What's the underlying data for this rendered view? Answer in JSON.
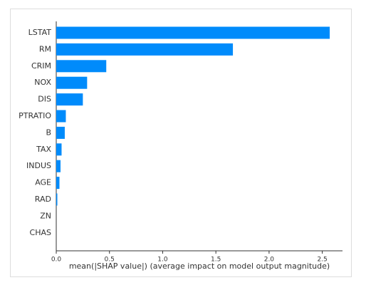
{
  "chart_data": {
    "type": "barh",
    "categories": [
      "LSTAT",
      "RM",
      "CRIM",
      "NOX",
      "DIS",
      "PTRATIO",
      "B",
      "TAX",
      "INDUS",
      "AGE",
      "RAD",
      "ZN",
      "CHAS"
    ],
    "values": [
      2.57,
      1.66,
      0.47,
      0.29,
      0.25,
      0.09,
      0.08,
      0.05,
      0.04,
      0.03,
      0.01,
      0.0,
      0.0
    ],
    "color": "#008bfb",
    "xlabel": "mean(|SHAP value|) (average impact on model output magnitude)",
    "xlim": [
      0,
      2.69
    ],
    "xticks": [
      {
        "value": 0,
        "label": "0.0"
      },
      {
        "value": 0.5,
        "label": "0.5"
      },
      {
        "value": 1,
        "label": "1.0"
      },
      {
        "value": 1.5,
        "label": "1.5"
      },
      {
        "value": 2,
        "label": "2.0"
      },
      {
        "value": 2.5,
        "label": "2.5"
      }
    ]
  }
}
